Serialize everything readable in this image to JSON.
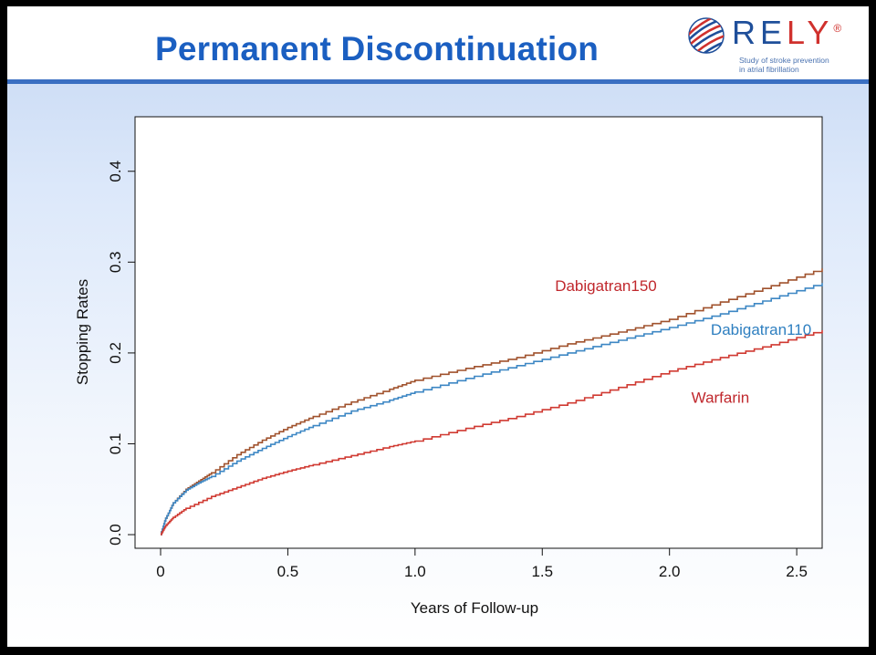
{
  "slide": {
    "title": "Permanent Discontinuation",
    "logo": {
      "icon": "globe-swirl-icon",
      "word_blue": "RE",
      "word_red": "LY",
      "registered": "®",
      "tagline_1": "Study of stroke prevention",
      "tagline_2": "in atrial fibrillation"
    }
  },
  "chart_data": {
    "type": "line",
    "xlabel": "Years of Follow-up",
    "ylabel": "Stopping Rates",
    "xlim": [
      0,
      2.6
    ],
    "ylim": [
      -0.015,
      0.46
    ],
    "xticks": [
      "0",
      "0.5",
      "1.0",
      "1.5",
      "2.0",
      "2.5"
    ],
    "xtick_values": [
      0,
      0.5,
      1.0,
      1.5,
      2.0,
      2.5
    ],
    "yticks": [
      "0.0",
      "0.1",
      "0.2",
      "0.3",
      "0.4"
    ],
    "ytick_values": [
      0,
      0.1,
      0.2,
      0.3,
      0.4
    ],
    "grid": false,
    "series": [
      {
        "name": "Dabigatran150",
        "color": "#a0522d",
        "label_color": "#c0282d",
        "label_x": 1.75,
        "label_y": 0.268,
        "x": [
          0,
          0.02,
          0.05,
          0.1,
          0.15,
          0.2,
          0.3,
          0.4,
          0.5,
          0.6,
          0.75,
          0.9,
          1.0,
          1.2,
          1.4,
          1.6,
          1.8,
          2.0,
          2.2,
          2.4,
          2.6
        ],
        "y": [
          0,
          0.018,
          0.035,
          0.05,
          0.059,
          0.068,
          0.088,
          0.104,
          0.118,
          0.13,
          0.146,
          0.16,
          0.17,
          0.183,
          0.195,
          0.21,
          0.223,
          0.237,
          0.256,
          0.274,
          0.293
        ]
      },
      {
        "name": "Dabigatran110",
        "color": "#3d87c4",
        "label_color": "#2e7fc0",
        "label_x": 2.36,
        "label_y": 0.22,
        "x": [
          0,
          0.02,
          0.05,
          0.1,
          0.15,
          0.2,
          0.3,
          0.4,
          0.5,
          0.6,
          0.75,
          0.9,
          1.0,
          1.2,
          1.4,
          1.6,
          1.8,
          2.0,
          2.2,
          2.4,
          2.6
        ],
        "y": [
          0,
          0.018,
          0.035,
          0.049,
          0.057,
          0.064,
          0.081,
          0.095,
          0.108,
          0.12,
          0.136,
          0.148,
          0.157,
          0.172,
          0.186,
          0.2,
          0.214,
          0.228,
          0.243,
          0.26,
          0.277
        ]
      },
      {
        "name": "Warfarin",
        "color": "#d03a32",
        "label_color": "#c0282d",
        "label_x": 2.2,
        "label_y": 0.145,
        "x": [
          0,
          0.02,
          0.05,
          0.1,
          0.2,
          0.3,
          0.4,
          0.5,
          0.6,
          0.75,
          0.9,
          1.0,
          1.2,
          1.4,
          1.6,
          1.8,
          2.0,
          2.2,
          2.4,
          2.6
        ],
        "y": [
          0,
          0.01,
          0.019,
          0.029,
          0.042,
          0.052,
          0.062,
          0.07,
          0.077,
          0.087,
          0.097,
          0.103,
          0.117,
          0.13,
          0.145,
          0.162,
          0.18,
          0.195,
          0.209,
          0.225
        ]
      }
    ]
  }
}
